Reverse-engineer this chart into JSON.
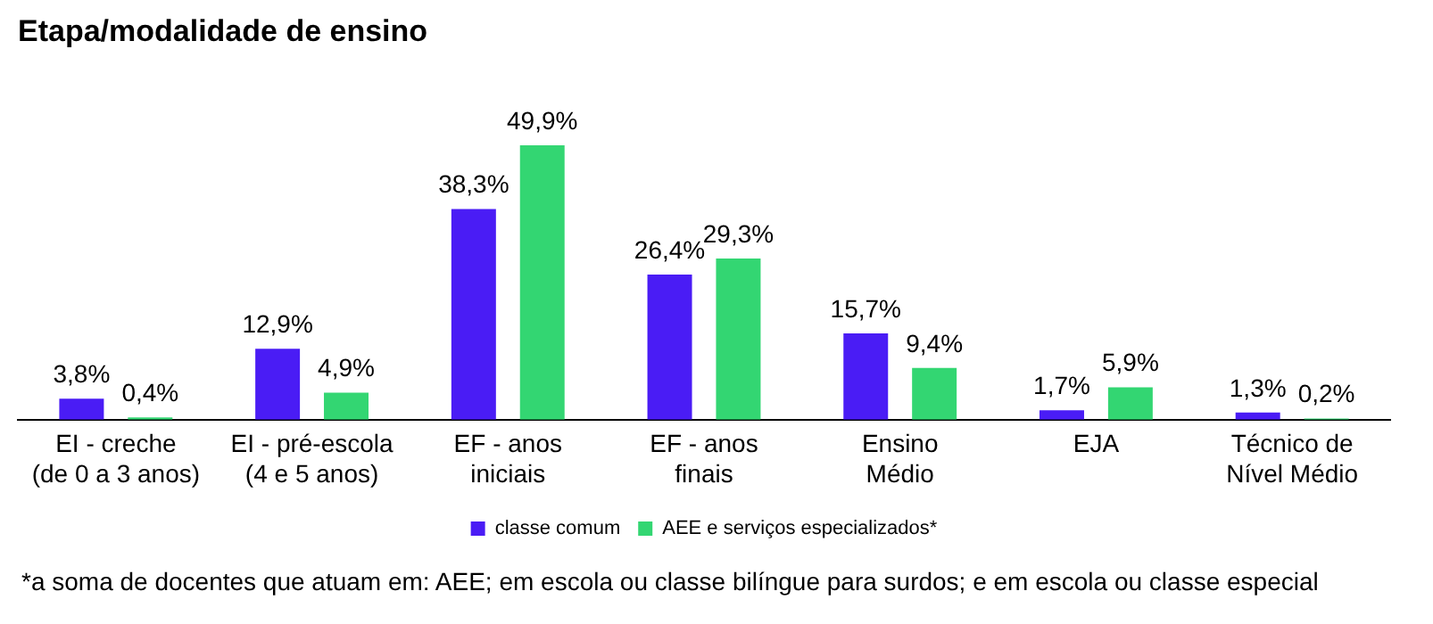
{
  "chart_data": {
    "type": "bar",
    "title": "Etapa/modalidade de ensino",
    "categories": [
      "EI - creche\n(de 0 a 3 anos)",
      "EI - pré-escola\n(4 e 5 anos)",
      "EF - anos\niniciais",
      "EF - anos\nfinais",
      "Ensino\nMédio",
      "EJA",
      "Técnico de\nNível Médio"
    ],
    "series": [
      {
        "name": "classe comum",
        "color": "#4a1cf5",
        "values": [
          3.8,
          12.9,
          38.3,
          26.4,
          15.7,
          1.7,
          1.3
        ],
        "value_labels": [
          "3,8%",
          "12,9%",
          "38,3%",
          "26,4%",
          "15,7%",
          "1,7%",
          "1,3%"
        ]
      },
      {
        "name": "AEE e serviços especializados*",
        "color": "#33d672",
        "values": [
          0.4,
          4.9,
          49.9,
          29.3,
          9.4,
          5.9,
          0.2
        ],
        "value_labels": [
          "0,4%",
          "4,9%",
          "49,9%",
          "29,3%",
          "9,4%",
          "5,9%",
          "0,2%"
        ]
      }
    ],
    "grid": false,
    "legend": "bottom",
    "annotations": [
      "*a soma de docentes que atuam em: AEE; em escola ou classe bilíngue para surdos; e em escola ou classe especial"
    ]
  }
}
